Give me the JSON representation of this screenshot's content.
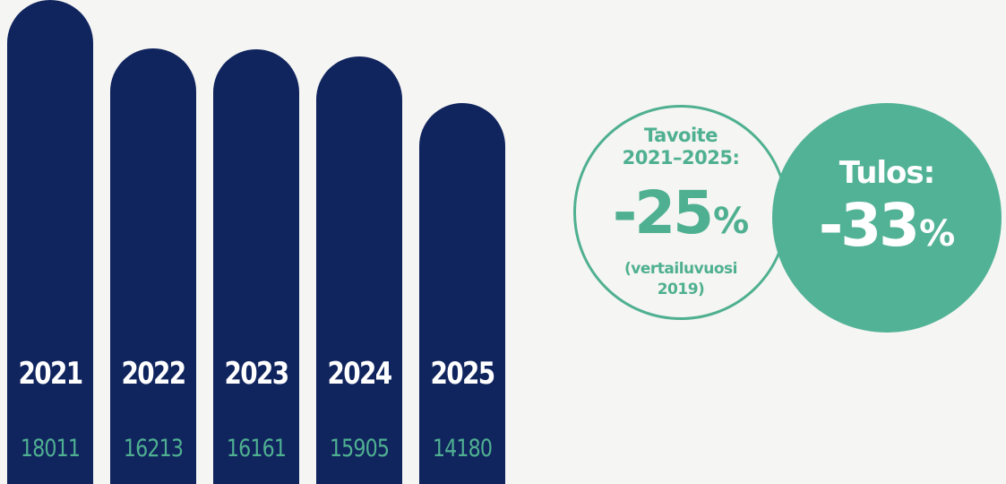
{
  "colors": {
    "background": "#f5f5f3",
    "bar": "#10245e",
    "year_text": "#ffffff",
    "value_text": "#4fb091",
    "accent_green": "#4fb091",
    "result_fill": "#52b296"
  },
  "chart_data": {
    "type": "bar",
    "categories": [
      "2021",
      "2022",
      "2023",
      "2024",
      "2025"
    ],
    "values": [
      18011,
      16213,
      16161,
      15905,
      14180
    ],
    "title": "",
    "xlabel": "",
    "ylabel": "",
    "grid": false
  },
  "target": {
    "line1": "Tavoite",
    "line2": "2021–2025:",
    "number": "-25",
    "percent": "%",
    "note1": "(vertailuvuosi",
    "note2": "2019)"
  },
  "result": {
    "label": "Tulos:",
    "number": "-33",
    "percent": "%"
  }
}
